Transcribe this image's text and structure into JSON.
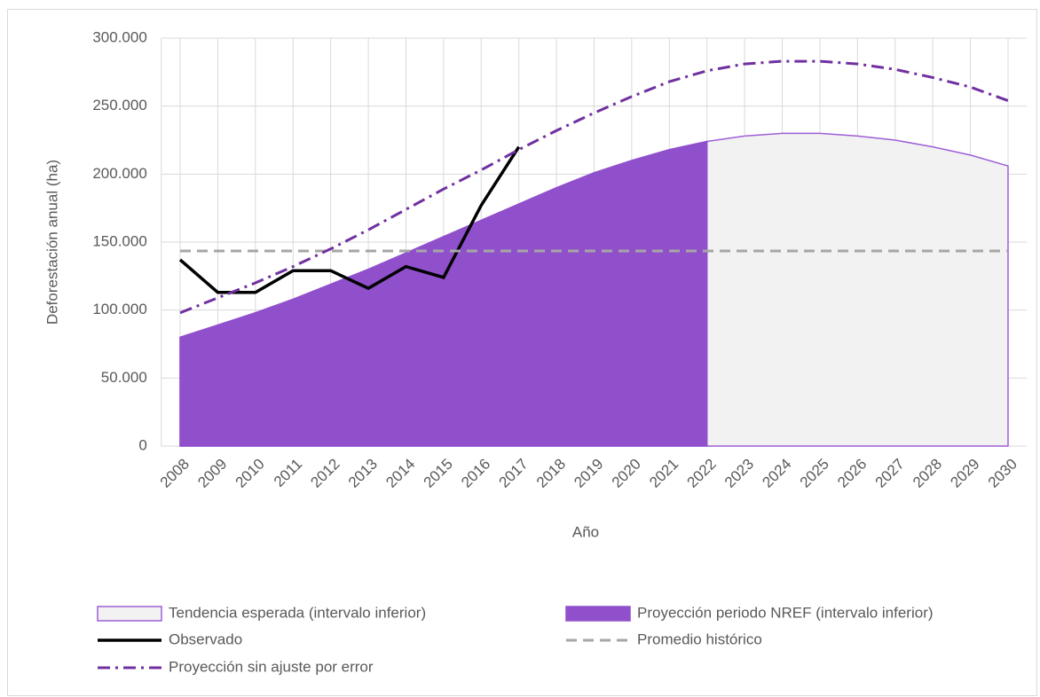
{
  "chart_data": {
    "type": "area_line",
    "x_label": "Año",
    "y_label": "Deforestación anual (ha)",
    "categories": [
      "2008",
      "2009",
      "2010",
      "2011",
      "2012",
      "2013",
      "2014",
      "2015",
      "2016",
      "2017",
      "2018",
      "2019",
      "2020",
      "2021",
      "2022",
      "2023",
      "2024",
      "2025",
      "2026",
      "2027",
      "2028",
      "2029",
      "2030"
    ],
    "ylim": [
      0,
      300000
    ],
    "yticks": [
      0,
      {
        "value": 50000,
        "label": "50.000"
      },
      {
        "value": 100000,
        "label": "100.000"
      },
      {
        "value": 150000,
        "label": "150.000"
      },
      {
        "value": 200000,
        "label": "200.000"
      },
      {
        "value": 250000,
        "label": "250.000"
      },
      {
        "value": 300000,
        "label": "300.000"
      }
    ],
    "grid": true,
    "series": [
      {
        "name": "Tendencia esperada (intervalo inferior)",
        "kind": "area",
        "color": "#f2f2f2",
        "edge": "#9e5fd6",
        "values": [
          80000,
          89000,
          98000,
          108000,
          119000,
          130000,
          142000,
          154000,
          166000,
          178000,
          190000,
          201000,
          210000,
          218000,
          224000,
          228000,
          230000,
          230000,
          228000,
          225000,
          220000,
          214000,
          206000
        ]
      },
      {
        "name": "Proyección periodo NREF (intervalo inferior)",
        "kind": "area",
        "color": "#9050cc",
        "edge": "#9050cc",
        "values": [
          80000,
          89000,
          98000,
          108000,
          119000,
          130000,
          142000,
          154000,
          166000,
          178000,
          190000,
          201000,
          210000,
          218000,
          224000,
          null,
          null,
          null,
          null,
          null,
          null,
          null,
          null
        ]
      },
      {
        "name": "Observado",
        "kind": "line",
        "color": "#000000",
        "dash": "solid",
        "values": [
          137000,
          113000,
          113000,
          129000,
          129000,
          116000,
          132000,
          124000,
          177000,
          220000,
          null,
          null,
          null,
          null,
          null,
          null,
          null,
          null,
          null,
          null,
          null,
          null,
          null
        ]
      },
      {
        "name": "Promedio histórico",
        "kind": "line",
        "color": "#a6a6a6",
        "dash": "dashed",
        "values": [
          143500,
          143500,
          143500,
          143500,
          143500,
          143500,
          143500,
          143500,
          143500,
          143500,
          143500,
          143500,
          143500,
          143500,
          143500,
          143500,
          143500,
          143500,
          143500,
          143500,
          143500,
          143500,
          143500
        ]
      },
      {
        "name": "Proyección sin ajuste por error",
        "kind": "line",
        "color": "#7030a0",
        "dash": "dashdot",
        "values": [
          98000,
          109000,
          120000,
          132000,
          145000,
          159000,
          174000,
          189000,
          203000,
          218000,
          232000,
          245000,
          257000,
          268000,
          276000,
          281000,
          283000,
          283000,
          281000,
          277000,
          271000,
          264000,
          254000
        ]
      }
    ]
  }
}
